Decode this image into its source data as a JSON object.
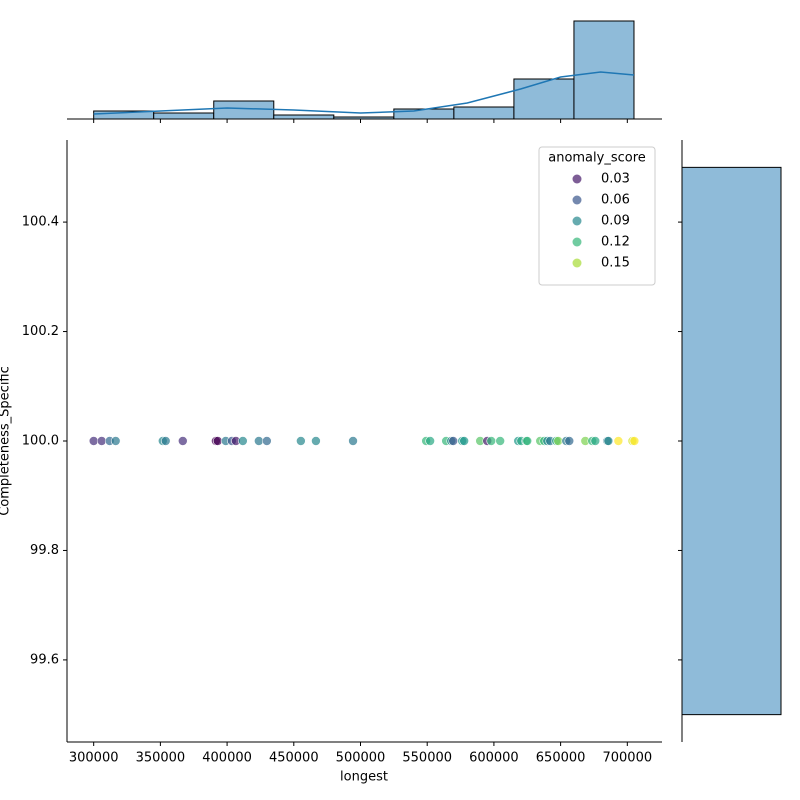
{
  "chart_data": [
    {
      "type": "scatter",
      "xlabel": "longest",
      "ylabel": "Completeness_Specific",
      "x": [
        300000,
        306000,
        312000,
        316500,
        351800,
        354000,
        366800,
        391600,
        393000,
        399000,
        403600,
        406600,
        411800,
        423800,
        429800,
        455300,
        466600,
        494400,
        549200,
        552200,
        564200,
        568000,
        569500,
        576200,
        577700,
        589700,
        595000,
        598000,
        604700,
        618200,
        620500,
        624200,
        625000,
        634700,
        637700,
        640000,
        642200,
        646700,
        648200,
        654200,
        656500,
        668500,
        673700,
        676000,
        685000,
        685800,
        693300,
        703800,
        705300
      ],
      "values": [
        100,
        100,
        100,
        100,
        100,
        100,
        100,
        100,
        100,
        100,
        100,
        100,
        100,
        100,
        100,
        100,
        100,
        100,
        100,
        100,
        100,
        100,
        100,
        100,
        100,
        100,
        100,
        100,
        100,
        100,
        100,
        100,
        100,
        100,
        100,
        100,
        100,
        100,
        100,
        100,
        100,
        100,
        100,
        100,
        100,
        100,
        100,
        100,
        100
      ],
      "hue": [
        0.04,
        0.04,
        0.07,
        0.08,
        0.09,
        0.08,
        0.04,
        0.02,
        0.02,
        0.08,
        0.06,
        0.03,
        0.09,
        0.08,
        0.07,
        0.09,
        0.09,
        0.08,
        0.12,
        0.11,
        0.12,
        0.09,
        0.06,
        0.1,
        0.1,
        0.13,
        0.03,
        0.12,
        0.12,
        0.1,
        0.11,
        0.11,
        0.12,
        0.13,
        0.12,
        0.09,
        0.08,
        0.11,
        0.14,
        0.08,
        0.07,
        0.14,
        0.12,
        0.11,
        0.08,
        0.09,
        0.17,
        0.16,
        0.17
      ],
      "colormap": "viridis",
      "legend": {
        "title": "anomaly_score",
        "values": [
          0.03,
          0.06,
          0.09,
          0.12,
          0.15
        ]
      },
      "legend_loc": "upper right",
      "xlim": [
        280000,
        726000
      ],
      "xticks": [
        300000,
        350000,
        400000,
        450000,
        500000,
        550000,
        600000,
        650000,
        700000
      ],
      "ylim": [
        99.45,
        100.55
      ],
      "yticks": [
        99.6,
        99.8,
        {
          "value": 100,
          "label": "100.0"
        },
        100.2,
        100.4
      ]
    },
    {
      "type": "histogram",
      "orientation": "vertical",
      "color": "#8fbbd9",
      "bins": [
        300000,
        345000,
        390000,
        435000,
        480000,
        525000,
        570000,
        615000,
        660000,
        705000
      ],
      "values": [
        4,
        3,
        9,
        2,
        1,
        5,
        6,
        20,
        49
      ],
      "kde": {
        "color": "#1f77b4",
        "x": [
          300000,
          350000,
          400000,
          450000,
          500000,
          540000,
          580000,
          620000,
          650000,
          680000,
          705000
        ],
        "values": [
          2.5,
          4,
          5.5,
          4.5,
          3,
          4,
          8,
          15,
          21,
          23.5,
          22
        ]
      },
      "xlim": [
        280000,
        726000
      ],
      "xticks": [
        300000,
        350000,
        400000,
        450000,
        500000,
        550000,
        600000,
        650000,
        700000
      ],
      "ylim": [
        0,
        52
      ]
    },
    {
      "type": "histogram",
      "orientation": "horizontal",
      "color": "#8fbbd9",
      "bins": [
        99.5,
        100.5
      ],
      "values": [
        99
      ],
      "xlim": [
        0,
        100
      ],
      "ylim": [
        99.45,
        100.55
      ],
      "yticks": [
        99.6,
        99.8,
        {
          "value": 100,
          "label": "100.0"
        },
        100.2,
        100.4
      ]
    }
  ]
}
